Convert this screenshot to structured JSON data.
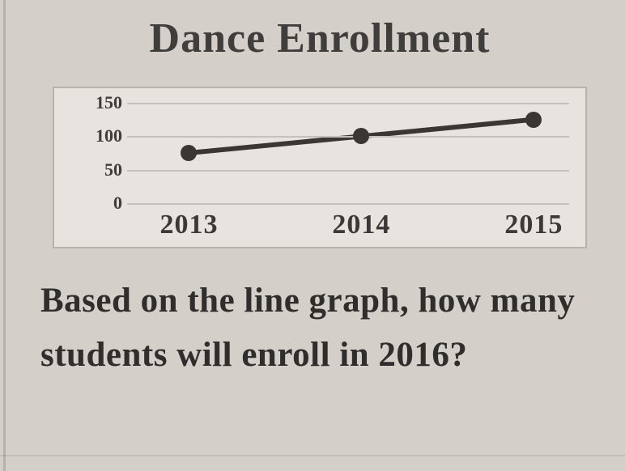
{
  "title": "Dance Enrollment",
  "chart": {
    "type": "line",
    "x_labels": [
      "2013",
      "2014",
      "2015"
    ],
    "y_ticks": [
      0,
      50,
      100,
      150
    ],
    "y_tick_labels": [
      "0",
      "50",
      "100",
      "150"
    ],
    "ylim_min": 0,
    "ylim_max": 150,
    "series_values": [
      75,
      100,
      125
    ],
    "line_color": "#3a3633",
    "marker_color": "#3a3633",
    "grid_color": "#c4c0bb",
    "plot_bg": "#e7e3de",
    "line_width": 6,
    "marker_radius": 10
  },
  "question": "Based on the line graph, how many students will enroll in 2016?",
  "page_bg": "#d4cfc9"
}
